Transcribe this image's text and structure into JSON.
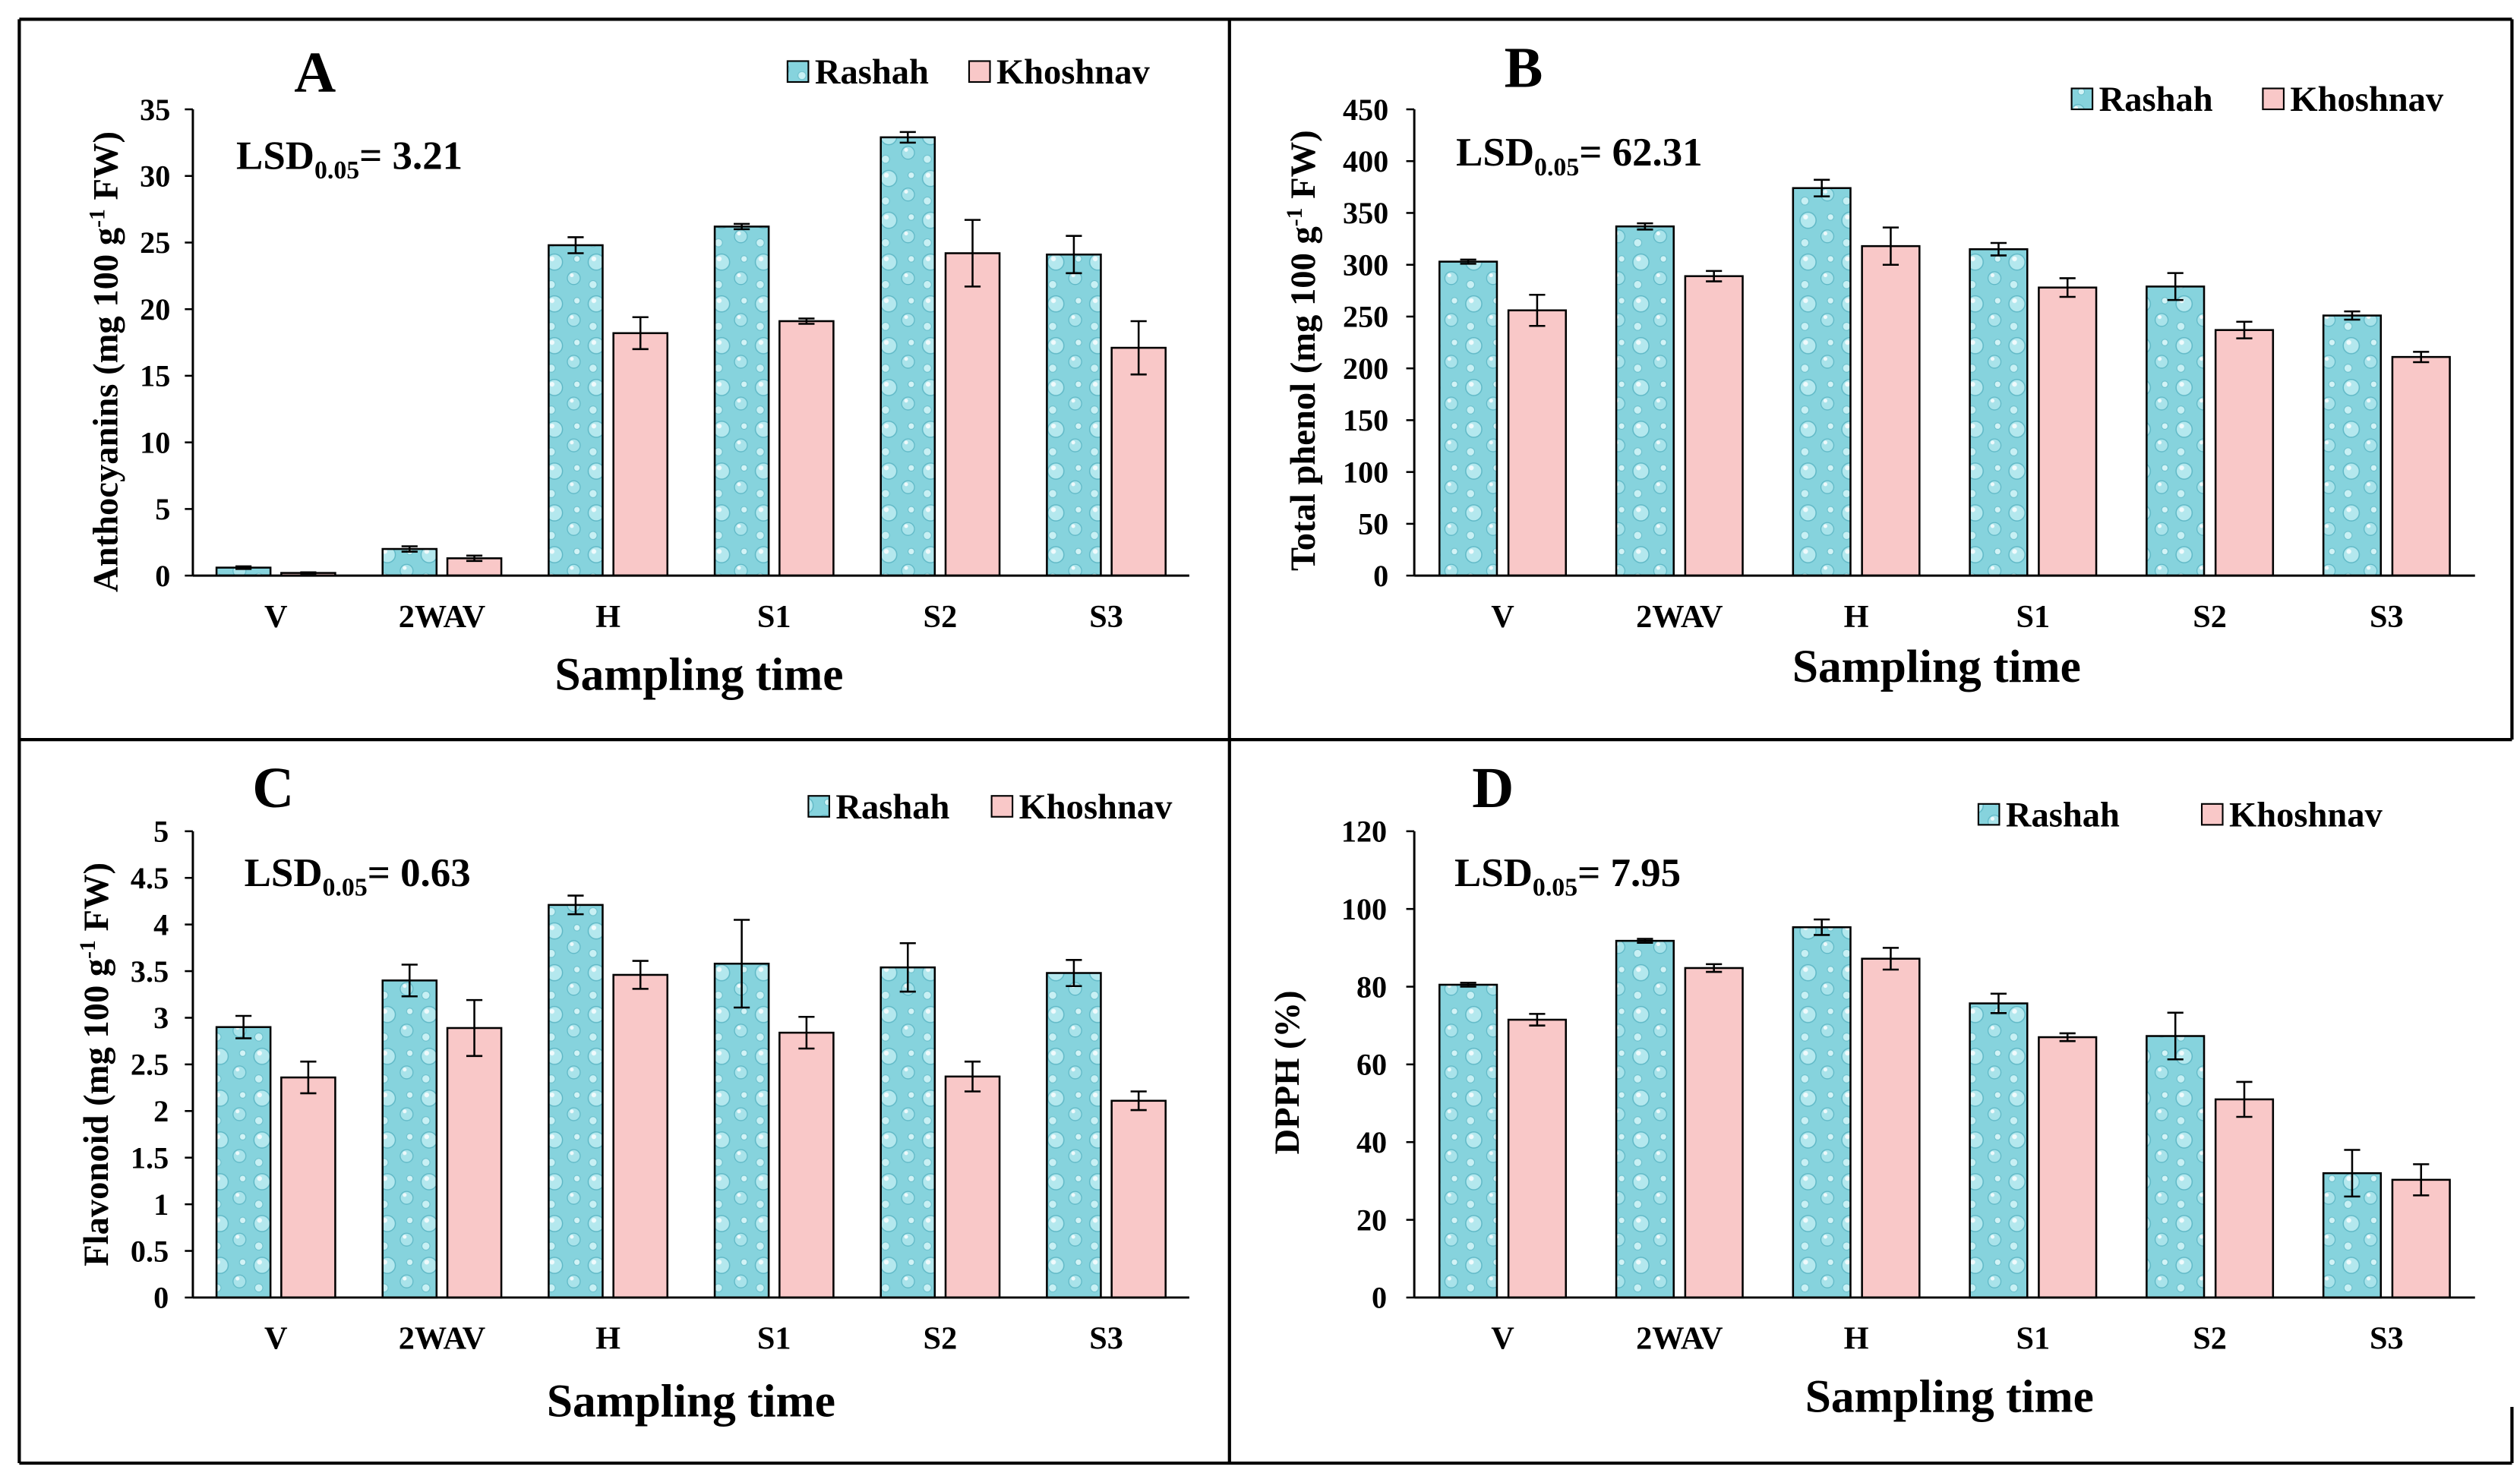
{
  "colors": {
    "rashah": "#86d3dd",
    "khoshnav": "#f9c8c8"
  },
  "chart_data": [
    {
      "type": "bar",
      "title": "A",
      "categories": [
        "V",
        "2WAV",
        "H",
        "S1",
        "S2",
        "S3"
      ],
      "series": [
        {
          "name": "Rashah",
          "values": [
            0.6,
            2.0,
            24.8,
            26.2,
            32.9,
            24.1
          ],
          "errors": [
            0.1,
            0.2,
            0.6,
            0.2,
            0.4,
            1.4
          ]
        },
        {
          "name": "Khoshnav",
          "values": [
            0.2,
            1.3,
            18.2,
            19.1,
            24.2,
            17.1
          ],
          "errors": [
            0.05,
            0.2,
            1.2,
            0.2,
            2.5,
            2.0
          ]
        }
      ],
      "xlabel": "Sampling time",
      "ylabel": {
        "text": "Anthocyanins (mg 100 g",
        "sup": "-1",
        "tail": " FW)"
      },
      "ylim": [
        0,
        35
      ],
      "yticks": [
        0,
        5,
        10,
        15,
        20,
        25,
        30,
        35
      ],
      "lsd": {
        "label": "LSD",
        "sub": "0.05",
        "value": "= 3.21"
      },
      "grid": false
    },
    {
      "type": "bar",
      "title": "B",
      "categories": [
        "V",
        "2WAV",
        "H",
        "S1",
        "S2",
        "S3"
      ],
      "series": [
        {
          "name": "Rashah",
          "values": [
            303,
            337,
            374,
            315,
            279,
            251
          ],
          "errors": [
            2,
            3,
            8,
            6,
            13,
            4
          ]
        },
        {
          "name": "Khoshnav",
          "values": [
            256,
            289,
            318,
            278,
            237,
            211
          ],
          "errors": [
            15,
            5,
            18,
            9,
            8,
            5
          ]
        }
      ],
      "xlabel": "Sampling time",
      "ylabel": {
        "text": "Total phenol (mg 100 g",
        "sup": "-1",
        "tail": " FW)"
      },
      "ylim": [
        0,
        450
      ],
      "yticks": [
        0,
        50,
        100,
        150,
        200,
        250,
        300,
        350,
        400,
        450
      ],
      "lsd": {
        "label": "LSD",
        "sub": "0.05",
        "value": "= 62.31"
      },
      "grid": false
    },
    {
      "type": "bar",
      "title": "C",
      "categories": [
        "V",
        "2WAV",
        "H",
        "S1",
        "S2",
        "S3"
      ],
      "series": [
        {
          "name": "Rashah",
          "values": [
            2.9,
            3.4,
            4.21,
            3.58,
            3.54,
            3.48
          ],
          "errors": [
            0.12,
            0.17,
            0.1,
            0.47,
            0.26,
            0.14
          ]
        },
        {
          "name": "Khoshnav",
          "values": [
            2.36,
            2.89,
            3.46,
            2.84,
            2.37,
            2.11
          ],
          "errors": [
            0.17,
            0.3,
            0.15,
            0.17,
            0.16,
            0.1
          ]
        }
      ],
      "xlabel": "Sampling time",
      "ylabel": {
        "text": "Flavonoid (mg 100 g",
        "sup": "-1",
        "tail": " FW)"
      },
      "ylim": [
        0,
        5
      ],
      "yticks": [
        0,
        0.5,
        1,
        1.5,
        2,
        2.5,
        3,
        3.5,
        4,
        4.5,
        5
      ],
      "lsd": {
        "label": "LSD",
        "sub": "0.05",
        "value": "= 0.63"
      },
      "grid": false
    },
    {
      "type": "bar",
      "title": "D",
      "categories": [
        "V",
        "2WAV",
        "H",
        "S1",
        "S2",
        "S3"
      ],
      "series": [
        {
          "name": "Rashah",
          "values": [
            80.5,
            91.8,
            95.3,
            75.7,
            67.3,
            32.0
          ],
          "errors": [
            0.5,
            0.5,
            2.0,
            2.5,
            6.0,
            6.0
          ]
        },
        {
          "name": "Khoshnav",
          "values": [
            71.5,
            84.8,
            87.2,
            67.0,
            51.0,
            30.3
          ],
          "errors": [
            1.5,
            1.0,
            2.8,
            1.0,
            4.5,
            4.0
          ]
        }
      ],
      "xlabel": "Sampling time",
      "ylabel": {
        "text": "DPPH (%)"
      },
      "ylim": [
        0,
        120
      ],
      "yticks": [
        0,
        20,
        40,
        60,
        80,
        100,
        120
      ],
      "lsd": {
        "label": "LSD",
        "sub": "0.05",
        "value": "= 7.95"
      },
      "grid": false
    }
  ]
}
